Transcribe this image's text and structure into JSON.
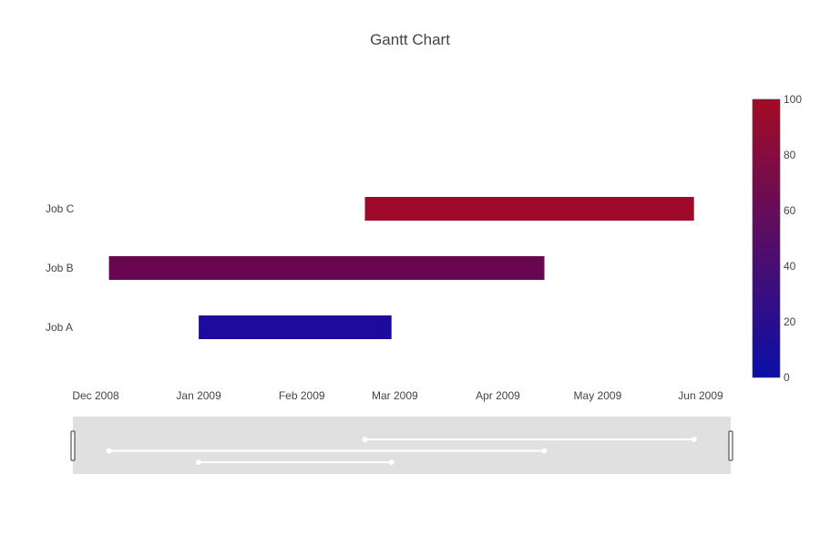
{
  "chart_data": {
    "type": "gantt",
    "title": "Gantt Chart",
    "tasks": [
      {
        "name": "Job A",
        "start": "2009-01-01",
        "finish": "2009-02-28",
        "complete": 10,
        "color": "#1e0a9c"
      },
      {
        "name": "Job B",
        "start": "2008-12-05",
        "finish": "2009-04-15",
        "complete": 60,
        "color": "#6a064f"
      },
      {
        "name": "Job C",
        "start": "2009-02-20",
        "finish": "2009-05-30",
        "complete": 95,
        "color": "#a00a2a"
      }
    ],
    "x_ticks": [
      {
        "label": "Dec 2008",
        "date": "2008-12-01"
      },
      {
        "label": "Jan 2009",
        "date": "2009-01-01"
      },
      {
        "label": "Feb 2009",
        "date": "2009-02-01"
      },
      {
        "label": "Mar 2009",
        "date": "2009-03-01"
      },
      {
        "label": "Apr 2009",
        "date": "2009-04-01"
      },
      {
        "label": "May 2009",
        "date": "2009-05-01"
      },
      {
        "label": "Jun 2009",
        "date": "2009-06-01"
      }
    ],
    "xlim": [
      "2008-12-01",
      "2009-06-01"
    ],
    "colorbar": {
      "min": 0,
      "max": 100,
      "ticks": [
        "0",
        "20",
        "40",
        "60",
        "80",
        "100"
      ],
      "colorscale": [
        "#0a0fa8",
        "#a30b24"
      ]
    },
    "rangeslider": true,
    "grid": false,
    "legend": "none"
  }
}
